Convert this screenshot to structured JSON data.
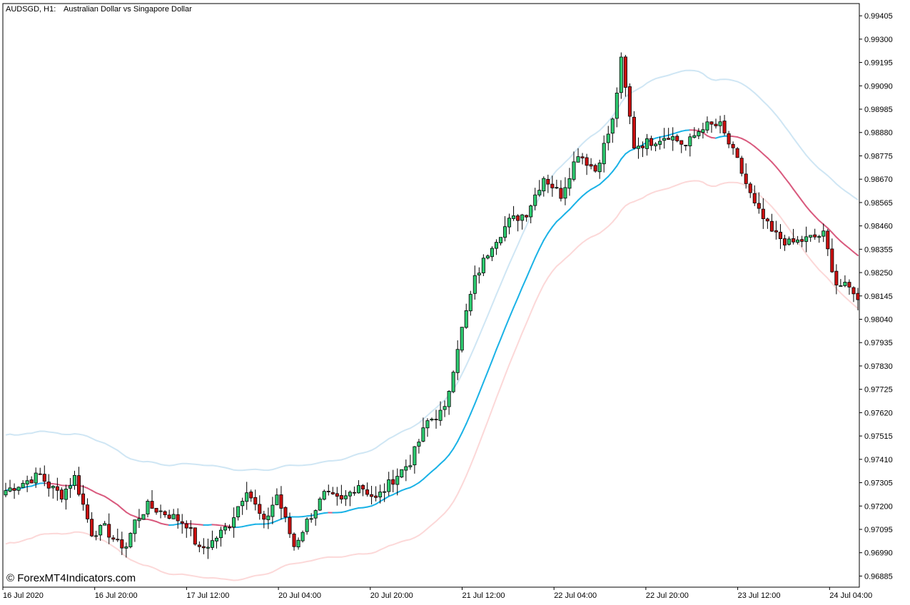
{
  "header": {
    "symbol_label": "AUDSGD, H1:",
    "description": "Australian Dollar vs Singapore Dollar"
  },
  "watermark": "© ForexMT4Indicators.com",
  "colors": {
    "background": "#ffffff",
    "bull_candle": "#2ecc71",
    "bear_candle": "#cc1010",
    "wick": "#000000",
    "ma_up": "#1ab2e6",
    "ma_down": "#d95a7e",
    "upper_band": "#cfe6f4",
    "lower_band": "#fcd8d8"
  },
  "chart_data": {
    "type": "candlestick",
    "title": "AUDSGD, H1:  Australian Dollar vs Singapore Dollar",
    "timeframe": "H1",
    "y_range": [
      0.96835,
      0.9946
    ],
    "y_ticks": [
      "0.99405",
      "0.99300",
      "0.99195",
      "0.99090",
      "0.98985",
      "0.98880",
      "0.98775",
      "0.98670",
      "0.98565",
      "0.98460",
      "0.98355",
      "0.98250",
      "0.98145",
      "0.98040",
      "0.97935",
      "0.97830",
      "0.97725",
      "0.97620",
      "0.97515",
      "0.97410",
      "0.97305",
      "0.97200",
      "0.97095",
      "0.96990",
      "0.96885"
    ],
    "x_ticks": [
      "16 Jul 2020",
      "16 Jul 20:00",
      "17 Jul 12:00",
      "20 Jul 04:00",
      "20 Jul 20:00",
      "21 Jul 12:00",
      "22 Jul 04:00",
      "22 Jul 20:00",
      "23 Jul 12:00",
      "24 Jul 04:00"
    ],
    "bar_count": 199,
    "grid": false,
    "indicators": [
      "moving average (blue rising / red falling)",
      "upper band",
      "lower band"
    ],
    "close_keypoints": [
      [
        0,
        0.9727
      ],
      [
        8,
        0.9734
      ],
      [
        10,
        0.9729
      ],
      [
        13,
        0.9725
      ],
      [
        16,
        0.9733
      ],
      [
        20,
        0.9708
      ],
      [
        23,
        0.971
      ],
      [
        26,
        0.9703
      ],
      [
        28,
        0.9702
      ],
      [
        30,
        0.9713
      ],
      [
        33,
        0.972
      ],
      [
        38,
        0.9716
      ],
      [
        42,
        0.9712
      ],
      [
        45,
        0.97
      ],
      [
        48,
        0.9704
      ],
      [
        52,
        0.9712
      ],
      [
        56,
        0.9728
      ],
      [
        60,
        0.9712
      ],
      [
        63,
        0.9725
      ],
      [
        67,
        0.9702
      ],
      [
        70,
        0.9713
      ],
      [
        74,
        0.9725
      ],
      [
        78,
        0.9722
      ],
      [
        82,
        0.973
      ],
      [
        86,
        0.9723
      ],
      [
        90,
        0.9732
      ],
      [
        94,
        0.974
      ],
      [
        98,
        0.9758
      ],
      [
        102,
        0.9763
      ],
      [
        105,
        0.9792
      ],
      [
        109,
        0.9822
      ],
      [
        113,
        0.9838
      ],
      [
        117,
        0.9848
      ],
      [
        121,
        0.9852
      ],
      [
        125,
        0.9868
      ],
      [
        129,
        0.986
      ],
      [
        133,
        0.9879
      ],
      [
        137,
        0.9871
      ],
      [
        141,
        0.9893
      ],
      [
        143,
        0.992
      ],
      [
        146,
        0.9882
      ],
      [
        150,
        0.9884
      ],
      [
        154,
        0.9887
      ],
      [
        158,
        0.9882
      ],
      [
        162,
        0.9891
      ],
      [
        166,
        0.9891
      ],
      [
        170,
        0.9875
      ],
      [
        174,
        0.9855
      ],
      [
        178,
        0.9843
      ],
      [
        182,
        0.9838
      ],
      [
        186,
        0.984
      ],
      [
        190,
        0.9842
      ],
      [
        193,
        0.982
      ],
      [
        197,
        0.9817
      ],
      [
        198,
        0.9812
      ]
    ]
  }
}
